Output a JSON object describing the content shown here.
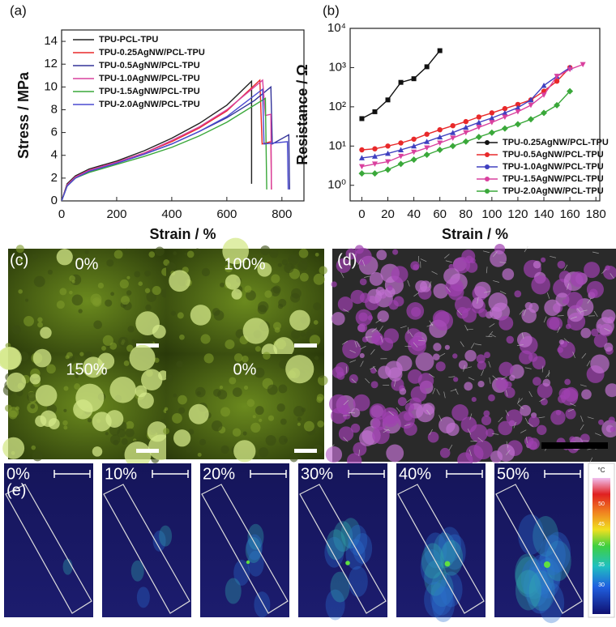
{
  "chart_data": [
    {
      "type": "line",
      "panel": "(a)",
      "xlabel": "Strain / %",
      "ylabel": "Stress / MPa",
      "xlim": [
        0,
        880
      ],
      "xticks": [
        0,
        200,
        400,
        600,
        800
      ],
      "ylim": [
        0,
        15
      ],
      "yticks": [
        0,
        2,
        4,
        6,
        8,
        10,
        12,
        14
      ],
      "legend": "upper left",
      "markers": false,
      "series": [
        {
          "name": "TPU-PCL-TPU",
          "color": "#222222",
          "x": [
            0,
            20,
            50,
            100,
            200,
            300,
            400,
            500,
            600,
            690,
            690
          ],
          "values": [
            0,
            1.5,
            2.2,
            2.8,
            3.5,
            4.4,
            5.5,
            6.8,
            8.4,
            10.5,
            1.5
          ]
        },
        {
          "name": "TPU-0.25AgNW/PCL-TPU",
          "color": "#e8292a",
          "x": [
            0,
            20,
            50,
            100,
            200,
            300,
            400,
            500,
            600,
            720,
            728,
            760,
            762
          ],
          "values": [
            0,
            1.4,
            2.1,
            2.7,
            3.4,
            4.2,
            5.2,
            6.4,
            7.9,
            10.6,
            5,
            5.2,
            1
          ]
        },
        {
          "name": "TPU-0.5AgNW/PCL-TPU",
          "color": "#333399",
          "x": [
            0,
            20,
            50,
            100,
            200,
            300,
            400,
            500,
            600,
            700,
            760,
            765,
            825,
            828
          ],
          "values": [
            0,
            1.3,
            2,
            2.6,
            3.3,
            4.1,
            5,
            6.1,
            7.3,
            8.8,
            10,
            5,
            5.8,
            1
          ]
        },
        {
          "name": "TPU-1.0AgNW/PCL-TPU",
          "color": "#d9409e",
          "x": [
            0,
            20,
            50,
            100,
            200,
            300,
            400,
            500,
            600,
            730,
            740,
            760,
            762
          ],
          "values": [
            0,
            1.4,
            2.1,
            2.7,
            3.4,
            4.2,
            5.3,
            6.5,
            8,
            10.6,
            7.5,
            7.6,
            1
          ]
        },
        {
          "name": "TPU-1.5AgNW/PCL-TPU",
          "color": "#3aa83a",
          "x": [
            0,
            20,
            50,
            100,
            200,
            300,
            400,
            500,
            600,
            740,
            745
          ],
          "values": [
            0,
            1.3,
            2,
            2.5,
            3.2,
            3.9,
            4.7,
            5.7,
            6.9,
            9,
            1
          ]
        },
        {
          "name": "TPU-2.0AgNW/PCL-TPU",
          "color": "#4a4ad0",
          "x": [
            0,
            20,
            50,
            100,
            200,
            300,
            400,
            500,
            600,
            730,
            735,
            820,
            823
          ],
          "values": [
            0,
            1.3,
            2,
            2.6,
            3.3,
            4.1,
            5,
            6.1,
            7.4,
            9.8,
            5,
            5.2,
            1
          ]
        }
      ]
    },
    {
      "type": "line",
      "panel": "(b)",
      "xlabel": "Strain / %",
      "ylabel": "Resistance / Ω",
      "xlim": [
        -9,
        183
      ],
      "xticks": [
        0,
        20,
        40,
        60,
        80,
        100,
        120,
        140,
        160,
        180
      ],
      "ylim": [
        0.4,
        10000
      ],
      "log": true,
      "yticks": [
        {
          "value": 1,
          "label": "10⁰"
        },
        {
          "value": 10,
          "label": "10¹"
        },
        {
          "value": 100,
          "label": "10²"
        },
        {
          "value": 1000,
          "label": "10³"
        },
        {
          "value": 10000,
          "label": "10⁴"
        }
      ],
      "legend": "lower right",
      "markers": true,
      "series": [
        {
          "name": "TPU-0.25AgNW/PCL-TPU",
          "color": "#111111",
          "x": [
            0,
            10,
            20,
            30,
            40,
            50,
            60
          ],
          "values": [
            50,
            75,
            150,
            420,
            520,
            1050,
            2700
          ]
        },
        {
          "name": "TPU-0.5AgNW/PCL-TPU",
          "color": "#e8292a",
          "x": [
            0,
            10,
            20,
            30,
            40,
            50,
            60,
            70,
            80,
            90,
            100,
            110,
            120,
            130,
            140,
            150,
            160
          ],
          "values": [
            8,
            8.5,
            10,
            12,
            15,
            20,
            26,
            33,
            42,
            55,
            70,
            90,
            115,
            150,
            250,
            450,
            1000
          ]
        },
        {
          "name": "TPU-1.0AgNW/PCL-TPU",
          "color": "#4040c0",
          "x": [
            0,
            10,
            20,
            30,
            40,
            50,
            60,
            70,
            80,
            90,
            100,
            110,
            120,
            130,
            140,
            150,
            160
          ],
          "values": [
            5,
            5.5,
            6.5,
            8,
            10,
            13,
            17,
            22,
            30,
            40,
            52,
            70,
            95,
            150,
            350,
            600,
            1000
          ]
        },
        {
          "name": "TPU-1.5AgNW/PCL-TPU",
          "color": "#d9409e",
          "x": [
            0,
            10,
            20,
            30,
            40,
            50,
            60,
            70,
            80,
            90,
            100,
            110,
            120,
            130,
            140,
            150,
            160,
            170
          ],
          "values": [
            3,
            3.5,
            4,
            5.5,
            7,
            9,
            12,
            16,
            22,
            30,
            40,
            55,
            75,
            110,
            200,
            600,
            900,
            1200
          ]
        },
        {
          "name": "TPU-2.0AgNW/PCL-TPU",
          "color": "#3aa83a",
          "x": [
            0,
            10,
            20,
            30,
            40,
            50,
            60,
            70,
            80,
            90,
            100,
            110,
            120,
            130,
            140,
            150,
            160
          ],
          "values": [
            2,
            2,
            2.5,
            3.5,
            4.5,
            6,
            8,
            10,
            13,
            17,
            22,
            28,
            36,
            48,
            70,
            110,
            250
          ]
        }
      ]
    }
  ],
  "panel_c": {
    "label": "(c)",
    "tiles": [
      "0%",
      "100%",
      "150%",
      "0%"
    ]
  },
  "panel_d": {
    "label": "(d)"
  },
  "panel_e": {
    "label": "(e)",
    "tiles": [
      "0%",
      "10%",
      "20%",
      "30%",
      "40%",
      "50%"
    ],
    "colorbar": {
      "unit": "°C",
      "ticks": [
        "50",
        "45",
        "40",
        "35",
        "30"
      ]
    }
  }
}
